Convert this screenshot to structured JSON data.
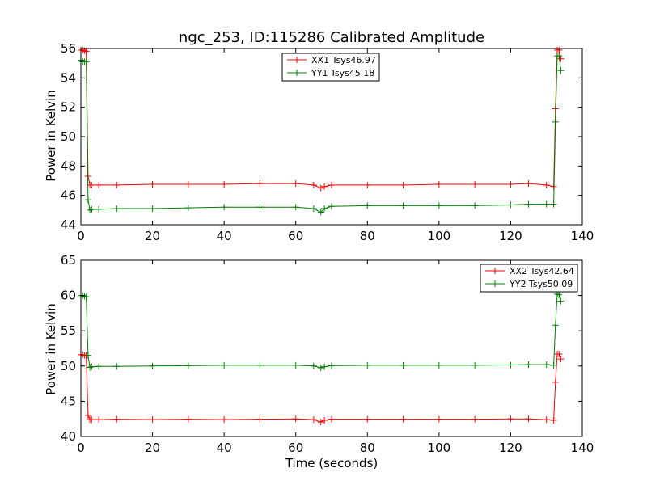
{
  "chart_data": [
    {
      "type": "line",
      "title": "ngc_253, ID:115286 Calibrated Amplitude",
      "xlabel": "",
      "ylabel": "Power in Kelvin",
      "xlim": [
        0,
        140
      ],
      "ylim": [
        44,
        56
      ],
      "xticks": [
        0,
        20,
        40,
        60,
        80,
        100,
        120,
        140
      ],
      "yticks": [
        44,
        46,
        48,
        50,
        52,
        54,
        56
      ],
      "grid": false,
      "legend_position": "top-center",
      "series": [
        {
          "name": "XX1 Tsys46.97",
          "color": "#ff0000",
          "x": [
            0,
            0.5,
            1,
            1.5,
            2,
            2.5,
            3,
            5,
            10,
            20,
            30,
            40,
            50,
            60,
            65,
            67,
            68,
            70,
            80,
            90,
            100,
            110,
            120,
            125,
            130,
            132,
            132.5,
            133,
            133.5,
            134
          ],
          "y": [
            55.9,
            55.9,
            55.85,
            55.8,
            47.3,
            46.7,
            46.7,
            46.7,
            46.7,
            46.75,
            46.75,
            46.75,
            46.8,
            46.8,
            46.7,
            46.5,
            46.6,
            46.7,
            46.7,
            46.7,
            46.75,
            46.75,
            46.75,
            46.8,
            46.7,
            46.6,
            51.9,
            55.9,
            55.9,
            55.3
          ]
        },
        {
          "name": "YY1 Tsys45.18",
          "color": "#008000",
          "x": [
            0,
            0.5,
            1,
            1.5,
            2,
            2.5,
            3,
            5,
            10,
            20,
            30,
            40,
            50,
            60,
            65,
            67,
            68,
            70,
            80,
            90,
            100,
            110,
            120,
            125,
            130,
            132,
            132.5,
            133,
            133.5,
            134
          ],
          "y": [
            55.2,
            55.1,
            55.1,
            55.1,
            45.7,
            45.0,
            45.05,
            45.05,
            45.1,
            45.1,
            45.15,
            45.2,
            45.2,
            45.2,
            45.1,
            44.85,
            45.1,
            45.25,
            45.3,
            45.3,
            45.3,
            45.3,
            45.35,
            45.4,
            45.4,
            45.4,
            51.0,
            55.5,
            55.5,
            54.5
          ]
        }
      ]
    },
    {
      "type": "line",
      "title": "",
      "xlabel": "Time (seconds)",
      "ylabel": "Power in Kelvin",
      "xlim": [
        0,
        140
      ],
      "ylim": [
        40,
        65
      ],
      "xticks": [
        0,
        20,
        40,
        60,
        80,
        100,
        120,
        140
      ],
      "yticks": [
        40,
        45,
        50,
        55,
        60,
        65
      ],
      "grid": false,
      "legend_position": "top-right",
      "series": [
        {
          "name": "XX2 Tsys42.64",
          "color": "#ff0000",
          "x": [
            0,
            0.5,
            1,
            1.5,
            2,
            2.5,
            3,
            5,
            10,
            20,
            30,
            40,
            50,
            60,
            65,
            67,
            68,
            70,
            80,
            90,
            100,
            110,
            120,
            125,
            130,
            132,
            132.5,
            133,
            133.5,
            134
          ],
          "y": [
            51.6,
            51.6,
            51.5,
            51.5,
            43.0,
            42.4,
            42.4,
            42.4,
            42.45,
            42.4,
            42.45,
            42.4,
            42.45,
            42.5,
            42.4,
            42.05,
            42.3,
            42.45,
            42.45,
            42.45,
            42.45,
            42.45,
            42.5,
            42.5,
            42.4,
            42.3,
            47.7,
            51.7,
            51.7,
            51.0
          ]
        },
        {
          "name": "YY2 Tsys50.09",
          "color": "#008000",
          "x": [
            0,
            0.5,
            1,
            1.5,
            2,
            2.5,
            3,
            5,
            10,
            20,
            30,
            40,
            50,
            60,
            65,
            67,
            68,
            70,
            80,
            90,
            100,
            110,
            120,
            125,
            130,
            132,
            132.5,
            133,
            133.5,
            134
          ],
          "y": [
            60.0,
            60.0,
            59.9,
            59.8,
            51.5,
            49.8,
            49.9,
            49.95,
            49.95,
            50.0,
            50.05,
            50.1,
            50.1,
            50.1,
            50.0,
            49.75,
            49.9,
            50.05,
            50.1,
            50.1,
            50.1,
            50.1,
            50.15,
            50.2,
            50.2,
            50.1,
            55.8,
            60.2,
            60.1,
            59.2
          ]
        }
      ]
    }
  ]
}
